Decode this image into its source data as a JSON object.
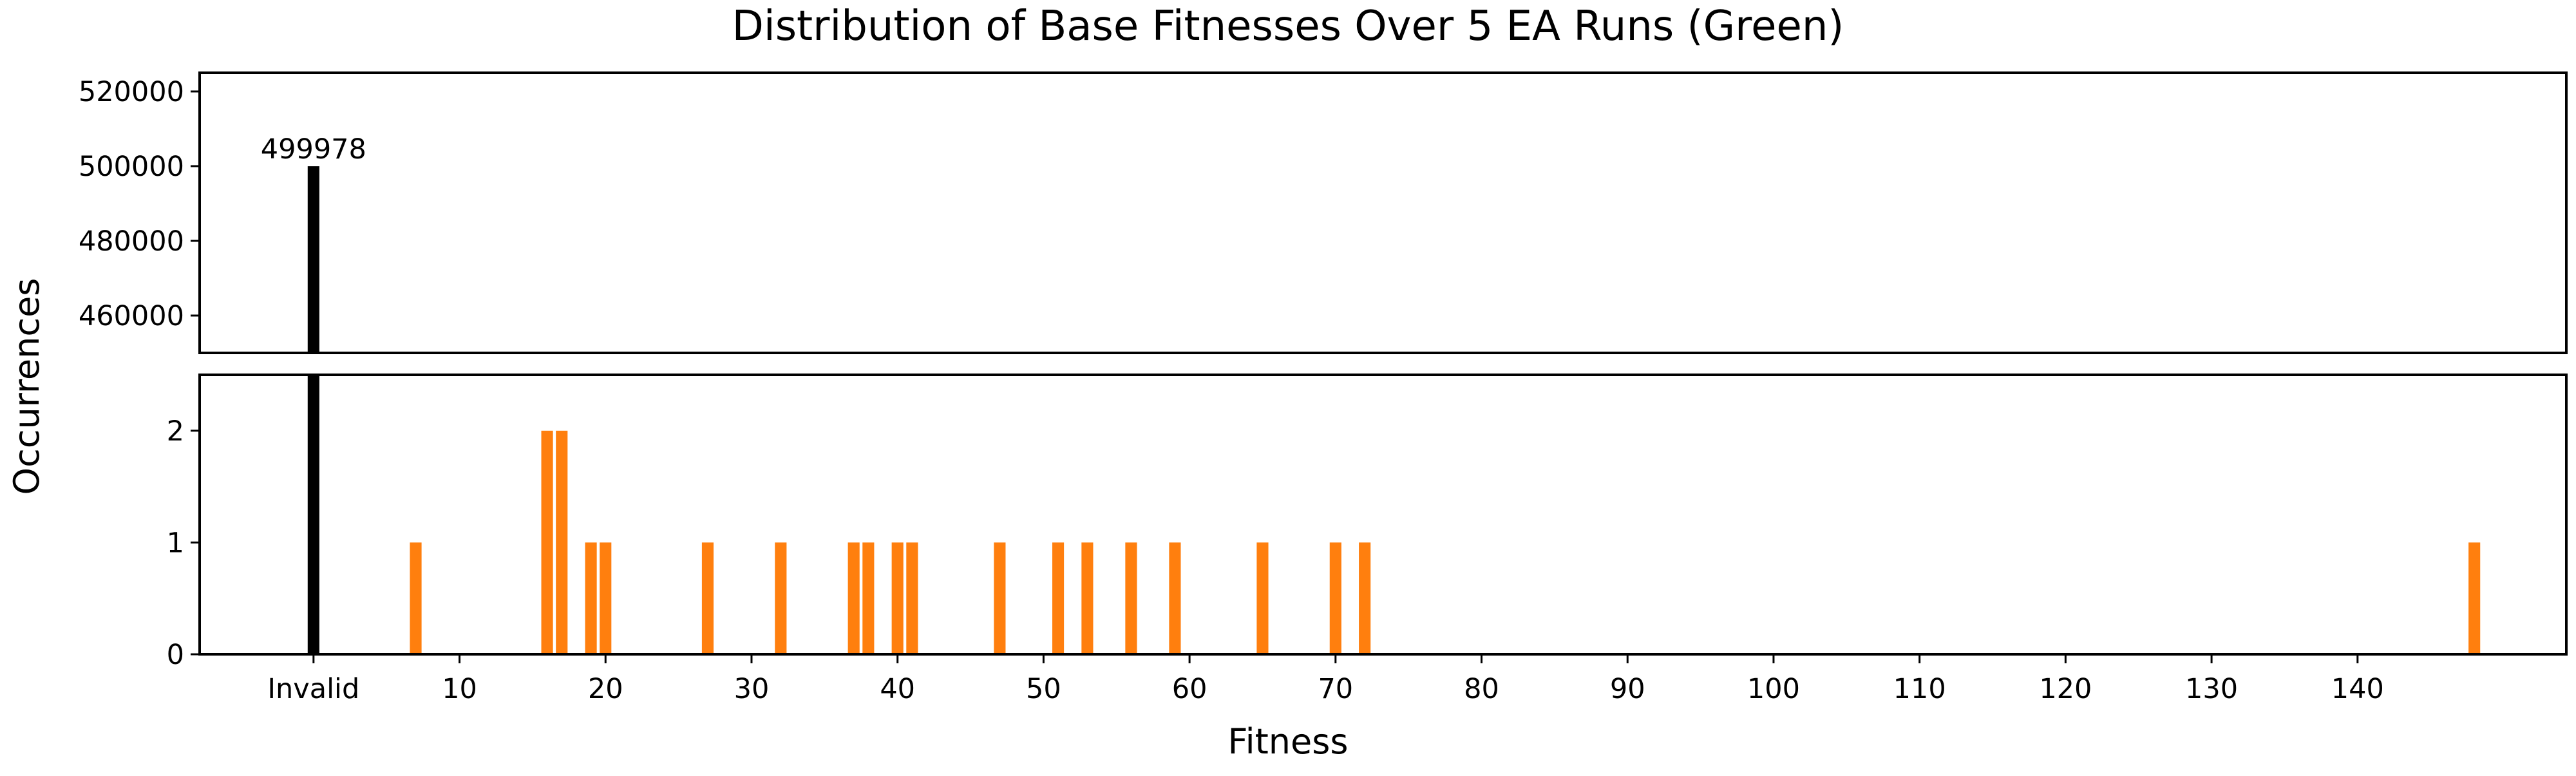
{
  "chart_data": {
    "type": "bar",
    "title": "Distribution of Base Fitnesses Over 5 EA Runs (Green)",
    "xlabel": "Fitness",
    "ylabel": "Occurrences",
    "xlim": [
      -7.8,
      154.3
    ],
    "x_ticks": [
      {
        "value": 0,
        "label": "Invalid"
      },
      {
        "value": 10,
        "label": "10"
      },
      {
        "value": 20,
        "label": "20"
      },
      {
        "value": 30,
        "label": "30"
      },
      {
        "value": 40,
        "label": "40"
      },
      {
        "value": 50,
        "label": "50"
      },
      {
        "value": 60,
        "label": "60"
      },
      {
        "value": 70,
        "label": "70"
      },
      {
        "value": 80,
        "label": "80"
      },
      {
        "value": 90,
        "label": "90"
      },
      {
        "value": 100,
        "label": "100"
      },
      {
        "value": 110,
        "label": "110"
      },
      {
        "value": 120,
        "label": "120"
      },
      {
        "value": 130,
        "label": "130"
      },
      {
        "value": 140,
        "label": "140"
      }
    ],
    "broken_y_axis": true,
    "upper_panel": {
      "ylim": [
        450000,
        525000
      ],
      "yticks": [
        "460000",
        "480000",
        "500000",
        "520000"
      ]
    },
    "lower_panel": {
      "ylim": [
        0,
        2.5
      ],
      "yticks": [
        "0",
        "1",
        "2"
      ]
    },
    "invalid_bar": {
      "x": 0,
      "label": "Invalid",
      "value": 499978,
      "data_label": "499978",
      "color": "#000000"
    },
    "bar_color": "#ff7f0e",
    "bars": [
      {
        "x": 7,
        "value": 1
      },
      {
        "x": 16,
        "value": 2
      },
      {
        "x": 17,
        "value": 2
      },
      {
        "x": 19,
        "value": 1
      },
      {
        "x": 20,
        "value": 1
      },
      {
        "x": 27,
        "value": 1
      },
      {
        "x": 32,
        "value": 1
      },
      {
        "x": 37,
        "value": 1
      },
      {
        "x": 38,
        "value": 1
      },
      {
        "x": 40,
        "value": 1
      },
      {
        "x": 41,
        "value": 1
      },
      {
        "x": 47,
        "value": 1
      },
      {
        "x": 51,
        "value": 1
      },
      {
        "x": 53,
        "value": 1
      },
      {
        "x": 56,
        "value": 1
      },
      {
        "x": 59,
        "value": 1
      },
      {
        "x": 65,
        "value": 1
      },
      {
        "x": 70,
        "value": 1
      },
      {
        "x": 72,
        "value": 1
      },
      {
        "x": 148,
        "value": 1
      }
    ]
  }
}
